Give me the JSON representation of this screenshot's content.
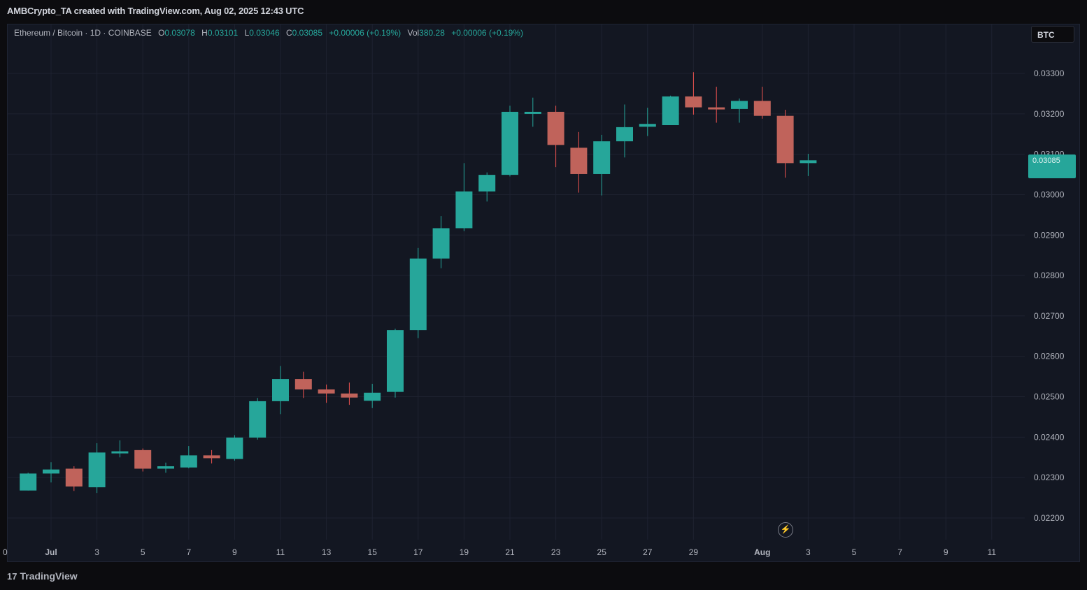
{
  "header": {
    "caption": "AMBCrypto_TA created with TradingView.com, Aug 02, 2025 12:43 UTC"
  },
  "legend": {
    "symbol": "Ethereum / Bitcoin · 1D · COINBASE",
    "o_label": "O",
    "o_value": "0.03078",
    "h_label": "H",
    "h_value": "0.03101",
    "l_label": "L",
    "l_value": "0.03046",
    "c_label": "C",
    "c_value": "0.03085",
    "change": "+0.00006 (+0.19%)",
    "vol_label": "Vol",
    "vol_value": "380.28",
    "vol_change": "+0.00006 (+0.19%)"
  },
  "currency": "BTC",
  "footer": {
    "brand": "TradingView",
    "mark": "17"
  },
  "colors": {
    "up": "#26a69a",
    "down": "#ef5350",
    "background": "#131722",
    "grid": "#1e2230"
  },
  "chart_data": {
    "type": "candlestick",
    "y_axis": {
      "ticks": [
        "0.03300",
        "0.03200",
        "0.03100",
        "0.03000",
        "0.02900",
        "0.02800",
        "0.02700",
        "0.02600",
        "0.02500",
        "0.02400",
        "0.02300",
        "0.02200"
      ],
      "tick_values": [
        0.033,
        0.032,
        0.031,
        0.03,
        0.029,
        0.028,
        0.027,
        0.026,
        0.025,
        0.024,
        0.023,
        0.022
      ]
    },
    "x_axis": {
      "labels": [
        {
          "t": "0",
          "d": -1
        },
        {
          "t": "Jul",
          "d": 1
        },
        {
          "t": "3",
          "d": 3
        },
        {
          "t": "5",
          "d": 5
        },
        {
          "t": "7",
          "d": 7
        },
        {
          "t": "9",
          "d": 9
        },
        {
          "t": "11",
          "d": 11
        },
        {
          "t": "13",
          "d": 13
        },
        {
          "t": "15",
          "d": 15
        },
        {
          "t": "17",
          "d": 17
        },
        {
          "t": "19",
          "d": 19
        },
        {
          "t": "21",
          "d": 21
        },
        {
          "t": "23",
          "d": 23
        },
        {
          "t": "25",
          "d": 25
        },
        {
          "t": "27",
          "d": 27
        },
        {
          "t": "29",
          "d": 29
        },
        {
          "t": "Aug",
          "d": 32
        },
        {
          "t": "3",
          "d": 34
        },
        {
          "t": "5",
          "d": 36
        },
        {
          "t": "7",
          "d": 38
        },
        {
          "t": "9",
          "d": 40
        },
        {
          "t": "11",
          "d": 42
        }
      ]
    },
    "candles": [
      {
        "d": 0,
        "o": 0.02268,
        "h": 0.02312,
        "l": 0.02268,
        "c": 0.0231
      },
      {
        "d": 1,
        "o": 0.0231,
        "h": 0.02338,
        "l": 0.02288,
        "c": 0.0232
      },
      {
        "d": 2,
        "o": 0.02322,
        "h": 0.02328,
        "l": 0.02267,
        "c": 0.02278
      },
      {
        "d": 3,
        "o": 0.02276,
        "h": 0.02385,
        "l": 0.02262,
        "c": 0.02362
      },
      {
        "d": 4,
        "o": 0.0236,
        "h": 0.02392,
        "l": 0.0235,
        "c": 0.02365
      },
      {
        "d": 5,
        "o": 0.02368,
        "h": 0.02372,
        "l": 0.02315,
        "c": 0.02322
      },
      {
        "d": 6,
        "o": 0.02322,
        "h": 0.02337,
        "l": 0.02312,
        "c": 0.02328
      },
      {
        "d": 7,
        "o": 0.02325,
        "h": 0.02378,
        "l": 0.02323,
        "c": 0.02355
      },
      {
        "d": 8,
        "o": 0.02355,
        "h": 0.02368,
        "l": 0.02335,
        "c": 0.02348
      },
      {
        "d": 9,
        "o": 0.02346,
        "h": 0.02405,
        "l": 0.02342,
        "c": 0.02399
      },
      {
        "d": 10,
        "o": 0.02399,
        "h": 0.02497,
        "l": 0.02394,
        "c": 0.02489
      },
      {
        "d": 11,
        "o": 0.02489,
        "h": 0.02576,
        "l": 0.02457,
        "c": 0.02544
      },
      {
        "d": 12,
        "o": 0.02544,
        "h": 0.02562,
        "l": 0.02497,
        "c": 0.02518
      },
      {
        "d": 13,
        "o": 0.02518,
        "h": 0.0253,
        "l": 0.02485,
        "c": 0.02508
      },
      {
        "d": 14,
        "o": 0.02508,
        "h": 0.02535,
        "l": 0.0248,
        "c": 0.02498
      },
      {
        "d": 15,
        "o": 0.0249,
        "h": 0.02532,
        "l": 0.02472,
        "c": 0.0251
      },
      {
        "d": 16,
        "o": 0.02512,
        "h": 0.02668,
        "l": 0.02498,
        "c": 0.02665
      },
      {
        "d": 17,
        "o": 0.02665,
        "h": 0.02868,
        "l": 0.02645,
        "c": 0.02842
      },
      {
        "d": 18,
        "o": 0.02842,
        "h": 0.02947,
        "l": 0.02818,
        "c": 0.02917
      },
      {
        "d": 19,
        "o": 0.02917,
        "h": 0.03078,
        "l": 0.0291,
        "c": 0.03008
      },
      {
        "d": 20,
        "o": 0.03008,
        "h": 0.03055,
        "l": 0.02983,
        "c": 0.03049
      },
      {
        "d": 21,
        "o": 0.03049,
        "h": 0.0322,
        "l": 0.03045,
        "c": 0.03205
      },
      {
        "d": 22,
        "o": 0.03205,
        "h": 0.0324,
        "l": 0.03168,
        "c": 0.03205
      },
      {
        "d": 23,
        "o": 0.03205,
        "h": 0.0322,
        "l": 0.03068,
        "c": 0.03123
      },
      {
        "d": 24,
        "o": 0.03116,
        "h": 0.03155,
        "l": 0.03005,
        "c": 0.03051
      },
      {
        "d": 25,
        "o": 0.03051,
        "h": 0.03148,
        "l": 0.02998,
        "c": 0.03132
      },
      {
        "d": 26,
        "o": 0.03132,
        "h": 0.03223,
        "l": 0.03092,
        "c": 0.03167
      },
      {
        "d": 27,
        "o": 0.03168,
        "h": 0.03215,
        "l": 0.03145,
        "c": 0.03175
      },
      {
        "d": 28,
        "o": 0.03172,
        "h": 0.03245,
        "l": 0.03172,
        "c": 0.03243
      },
      {
        "d": 29,
        "o": 0.03243,
        "h": 0.03303,
        "l": 0.03198,
        "c": 0.03216
      },
      {
        "d": 30,
        "o": 0.03216,
        "h": 0.03267,
        "l": 0.03178,
        "c": 0.03213
      },
      {
        "d": 31,
        "o": 0.03212,
        "h": 0.03238,
        "l": 0.03178,
        "c": 0.03232
      },
      {
        "d": 32,
        "o": 0.03232,
        "h": 0.03267,
        "l": 0.03188,
        "c": 0.03195
      },
      {
        "d": 33,
        "o": 0.03195,
        "h": 0.0321,
        "l": 0.03042,
        "c": 0.03078
      },
      {
        "d": 34,
        "o": 0.03078,
        "h": 0.03101,
        "l": 0.03046,
        "c": 0.03085
      }
    ]
  }
}
